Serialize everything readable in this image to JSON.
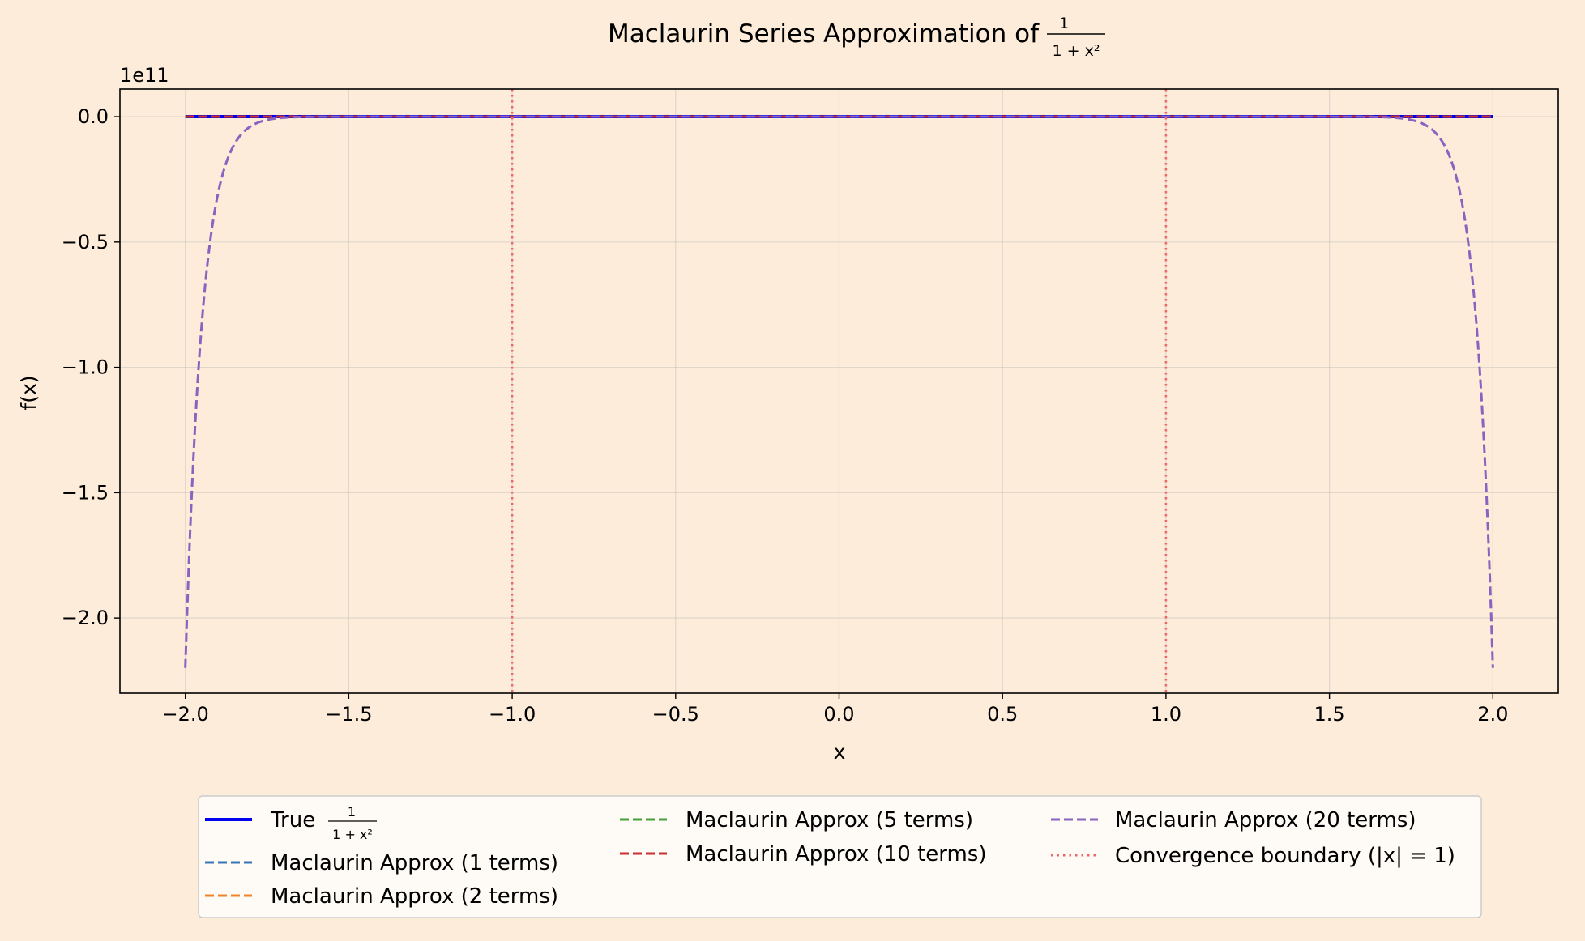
{
  "chart_data": {
    "type": "line",
    "title": "Maclaurin Series Approximation of",
    "title_fraction": {
      "numerator": "1",
      "denominator": "1 + x²"
    },
    "xlabel": "x",
    "ylabel": "f(x)",
    "y_offset_label": "1e11",
    "xlim": [
      -2.2,
      2.2
    ],
    "ylim": [
      -2.3,
      0.11
    ],
    "y_scale_factor": 100000000000,
    "x_ticks": [
      {
        "value": -2.0,
        "label": "−2.0"
      },
      {
        "value": -1.5,
        "label": "−1.5"
      },
      {
        "value": -1.0,
        "label": "−1.0"
      },
      {
        "value": -0.5,
        "label": "−0.5"
      },
      {
        "value": 0.0,
        "label": "0.0"
      },
      {
        "value": 0.5,
        "label": "0.5"
      },
      {
        "value": 1.0,
        "label": "1.0"
      },
      {
        "value": 1.5,
        "label": "1.5"
      },
      {
        "value": 2.0,
        "label": "2.0"
      }
    ],
    "y_ticks": [
      {
        "value": 0.0,
        "label": "0.0"
      },
      {
        "value": -0.5,
        "label": "−0.5"
      },
      {
        "value": -1.0,
        "label": "−1.0"
      },
      {
        "value": -1.5,
        "label": "−1.5"
      },
      {
        "value": -2.0,
        "label": "−2.0"
      }
    ],
    "grid": true,
    "legend_placement": "below-center",
    "x_range": [
      -2.0,
      2.0
    ],
    "series": [
      {
        "name": "True",
        "name_fraction": {
          "numerator": "1",
          "denominator": "1 + x²"
        },
        "function": "true",
        "color": "#0000ee",
        "style": "solid"
      },
      {
        "name": "Maclaurin Approx (1 terms)",
        "terms": 1,
        "color": "#3a75b8",
        "style": "dashed"
      },
      {
        "name": "Maclaurin Approx (2 terms)",
        "terms": 2,
        "color": "#f0842c",
        "style": "dashed"
      },
      {
        "name": "Maclaurin Approx (5 terms)",
        "terms": 5,
        "color": "#45a03a",
        "style": "dashed"
      },
      {
        "name": "Maclaurin Approx (10 terms)",
        "terms": 10,
        "color": "#cc2f2f",
        "style": "dashed"
      },
      {
        "name": "Maclaurin Approx (20 terms)",
        "terms": 20,
        "color": "#8a63c0",
        "style": "dashed"
      }
    ],
    "annotations": [
      {
        "name": "Convergence boundary (|x| = 1)",
        "type": "vline",
        "x": [
          -1,
          1
        ],
        "color": "#ee6666",
        "style": "dotted"
      }
    ]
  }
}
